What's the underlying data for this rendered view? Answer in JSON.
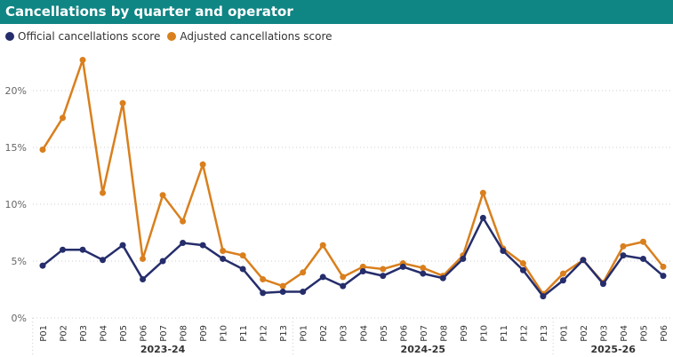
{
  "header": {
    "title": "Cancellations by quarter and operator"
  },
  "chart_data": {
    "type": "line",
    "title": "Cancellations by quarter and operator",
    "legend_position": "top-left",
    "grid": true,
    "ylim": [
      0,
      23
    ],
    "yticks": [
      "0%",
      "5%",
      "10%",
      "15%",
      "20%"
    ],
    "ytick_values": [
      0,
      5,
      10,
      15,
      20
    ],
    "groups": [
      {
        "label": "2023-24",
        "periods": [
          "P01",
          "P02",
          "P03",
          "P04",
          "P05",
          "P06",
          "P07",
          "P08",
          "P09",
          "P10",
          "P11",
          "P12",
          "P13"
        ]
      },
      {
        "label": "2024-25",
        "periods": [
          "P01",
          "P02",
          "P03",
          "P04",
          "P05",
          "P06",
          "P07",
          "P08",
          "P09",
          "P10",
          "P11",
          "P12",
          "P13"
        ]
      },
      {
        "label": "2025-26",
        "periods": [
          "P01",
          "P02",
          "P03",
          "P04",
          "P05",
          "P06"
        ]
      }
    ],
    "series": [
      {
        "name": "Official cancellations score",
        "color": "#252d6b",
        "values": [
          4.6,
          6.0,
          6.0,
          5.1,
          6.4,
          3.4,
          5.0,
          6.6,
          6.4,
          5.2,
          4.3,
          2.2,
          2.3,
          2.3,
          3.6,
          2.8,
          4.1,
          3.7,
          4.5,
          3.9,
          3.5,
          5.2,
          8.8,
          5.9,
          4.2,
          1.9,
          3.3,
          5.1,
          3.0,
          5.5,
          5.2,
          3.7
        ]
      },
      {
        "name": "Adjusted cancellations score",
        "color": "#d97f1d",
        "values": [
          14.8,
          17.6,
          22.7,
          11.0,
          18.9,
          5.2,
          10.8,
          8.5,
          13.5,
          5.9,
          5.5,
          3.4,
          2.8,
          4.0,
          6.4,
          3.6,
          4.5,
          4.3,
          4.8,
          4.4,
          3.7,
          5.5,
          11.0,
          6.1,
          4.8,
          2.1,
          3.9,
          5.1,
          3.1,
          6.3,
          6.7,
          4.5
        ]
      }
    ]
  }
}
